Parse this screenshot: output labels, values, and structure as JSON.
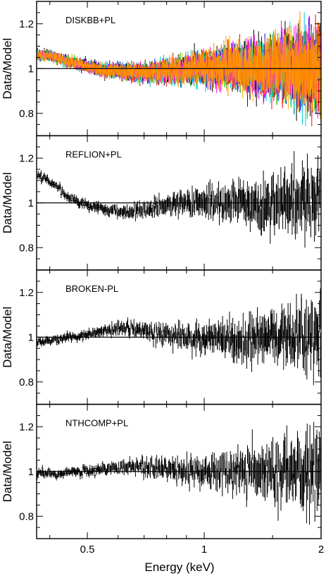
{
  "figure": {
    "ylabel": "Data/Model",
    "xlabel": "Energy (keV)",
    "x_scale": "log",
    "xlim": [
      0.37,
      2.0
    ],
    "ylim": [
      0.7,
      1.3
    ],
    "x_tick_labels": [
      "0.5",
      "1",
      "2"
    ],
    "y_tick_labels": [
      "0.8",
      "1",
      "1.2"
    ]
  },
  "chart_data": [
    {
      "type": "scatter",
      "panel_label": "DISKBB+PL",
      "xscale": "log",
      "xlim": [
        0.37,
        2.0
      ],
      "ylim": [
        0.7,
        1.3
      ],
      "xlabel": "",
      "ylabel": "Data/Model",
      "reference_line": 1.0,
      "error_bars": true,
      "colors": [
        "#000000",
        "#ff0000",
        "#00cc00",
        "#0000ff",
        "#00cccc",
        "#ff00ff",
        "#ffaa00",
        "#ff8800"
      ],
      "series": [
        {
          "x": [
            0.4,
            0.45,
            0.5,
            0.55,
            0.6,
            0.7,
            0.8,
            0.9,
            1.0,
            1.2,
            1.4,
            1.6,
            1.8,
            2.0
          ],
          "y": [
            1.06,
            1.03,
            1.01,
            0.99,
            0.99,
            0.98,
            0.99,
            1.0,
            1.0,
            1.01,
            1.0,
            1.0,
            1.0,
            1.0
          ]
        }
      ]
    },
    {
      "type": "scatter",
      "panel_label": "REFLION+PL",
      "xscale": "log",
      "xlim": [
        0.37,
        2.0
      ],
      "ylim": [
        0.7,
        1.3
      ],
      "xlabel": "",
      "ylabel": "Data/Model",
      "reference_line": 1.0,
      "error_bars": true,
      "colors": [
        "#000000"
      ],
      "series": [
        {
          "x": [
            0.38,
            0.4,
            0.42,
            0.45,
            0.5,
            0.55,
            0.6,
            0.65,
            0.7,
            0.8,
            0.9,
            1.0,
            1.2,
            1.4,
            1.6,
            1.8,
            2.0
          ],
          "y": [
            1.12,
            1.1,
            1.07,
            1.02,
            0.99,
            0.97,
            0.96,
            0.96,
            0.97,
            0.99,
            1.0,
            1.01,
            1.01,
            1.0,
            1.0,
            1.0,
            1.0
          ]
        }
      ]
    },
    {
      "type": "scatter",
      "panel_label": "BROKEN-PL",
      "xscale": "log",
      "xlim": [
        0.37,
        2.0
      ],
      "ylim": [
        0.7,
        1.3
      ],
      "xlabel": "",
      "ylabel": "Data/Model",
      "reference_line": 1.0,
      "error_bars": true,
      "colors": [
        "#000000"
      ],
      "series": [
        {
          "x": [
            0.38,
            0.42,
            0.46,
            0.5,
            0.55,
            0.6,
            0.65,
            0.7,
            0.8,
            0.9,
            1.0,
            1.2,
            1.4,
            1.6,
            1.8,
            2.0
          ],
          "y": [
            0.98,
            0.99,
            1.0,
            1.01,
            1.03,
            1.04,
            1.04,
            1.03,
            1.01,
            1.0,
            0.99,
            0.99,
            1.0,
            1.0,
            1.0,
            1.0
          ]
        }
      ]
    },
    {
      "type": "scatter",
      "panel_label": "NTHCOMP+PL",
      "xscale": "log",
      "xlim": [
        0.37,
        2.0
      ],
      "ylim": [
        0.7,
        1.3
      ],
      "xlabel": "Energy (keV)",
      "ylabel": "Data/Model",
      "reference_line": 1.0,
      "error_bars": true,
      "colors": [
        "#000000"
      ],
      "series": [
        {
          "x": [
            0.38,
            0.42,
            0.46,
            0.5,
            0.55,
            0.6,
            0.65,
            0.7,
            0.8,
            0.9,
            1.0,
            1.2,
            1.4,
            1.6,
            1.8,
            2.0
          ],
          "y": [
            0.99,
            0.99,
            1.0,
            1.0,
            1.01,
            1.02,
            1.02,
            1.02,
            1.01,
            1.0,
            1.0,
            1.0,
            1.0,
            1.0,
            1.0,
            1.0
          ]
        }
      ]
    }
  ]
}
